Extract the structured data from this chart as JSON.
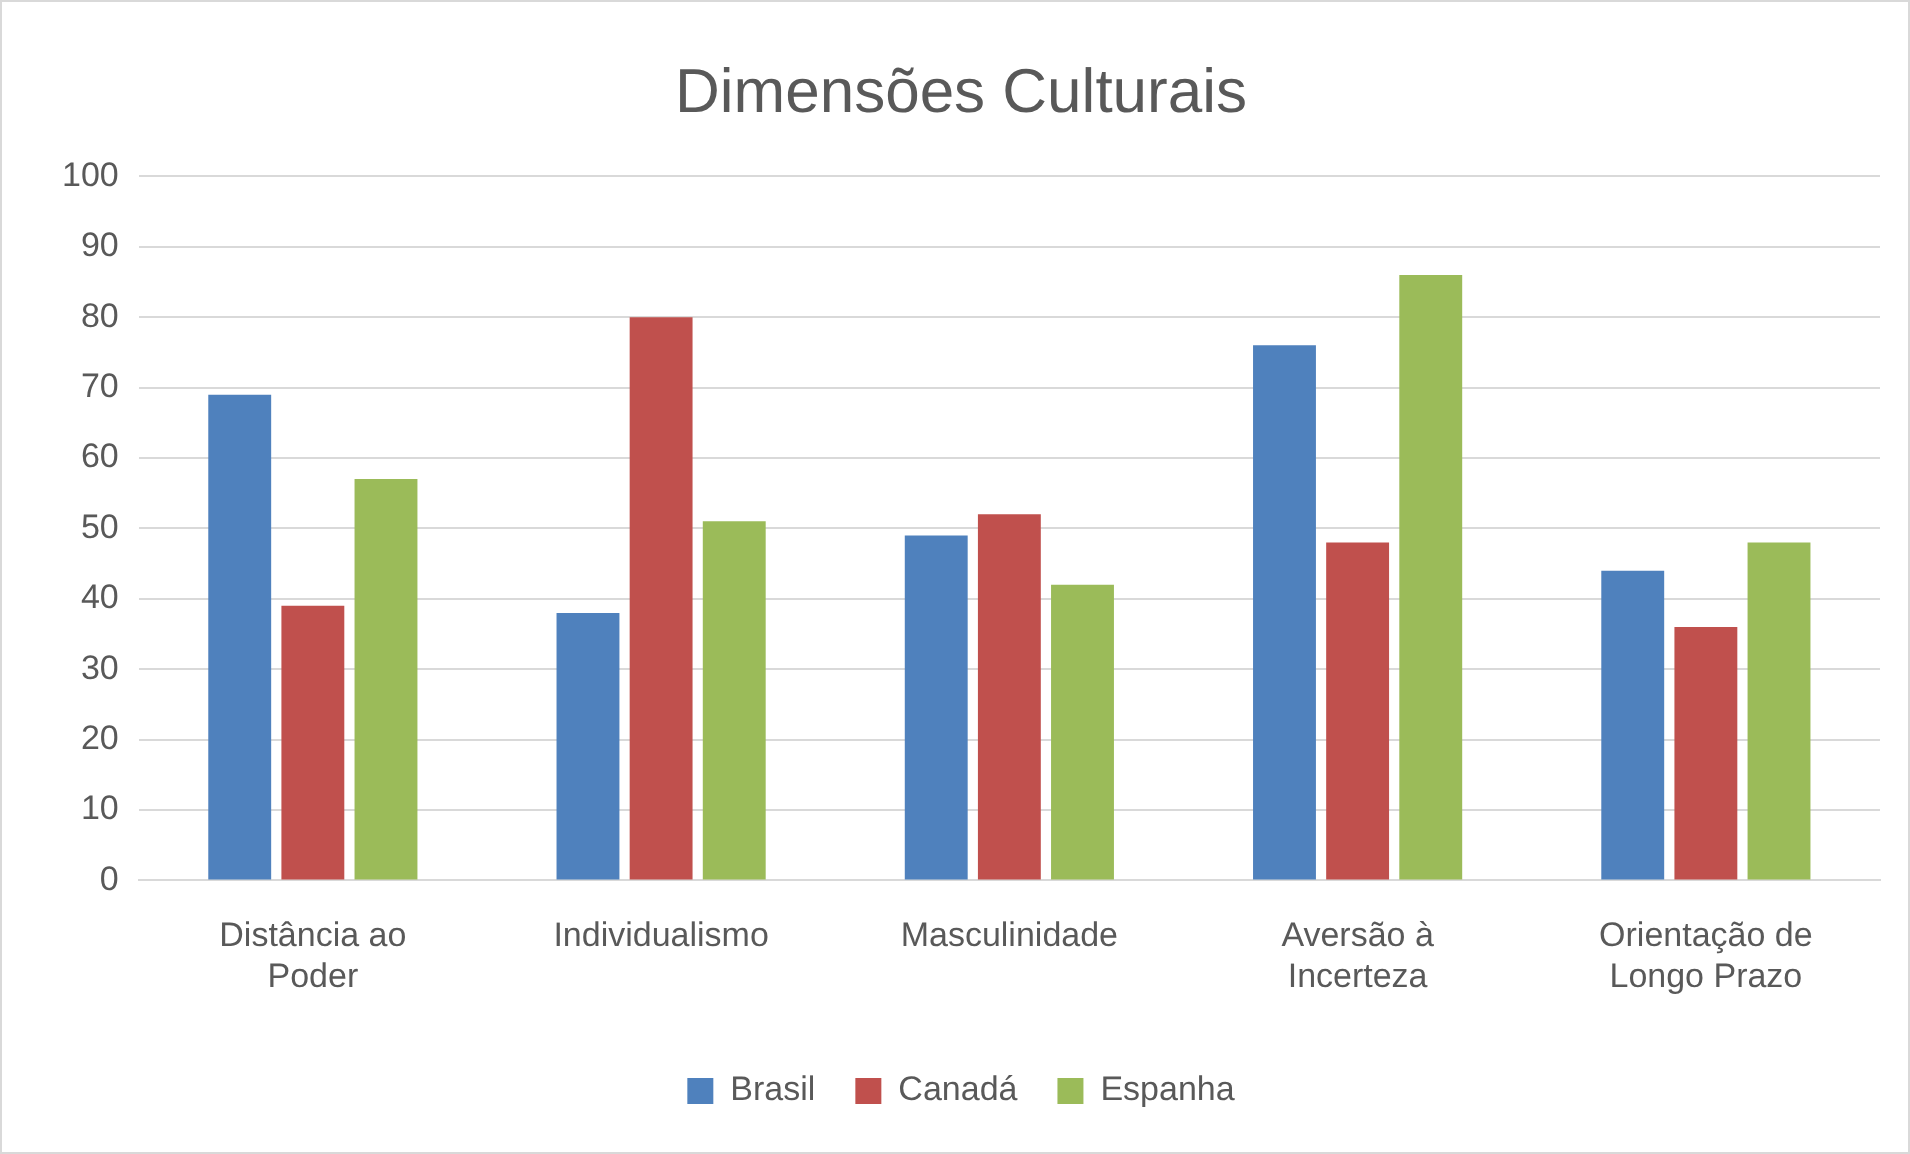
{
  "chart_data": {
    "type": "bar",
    "title": "Dimensões Culturais",
    "categories": [
      "Distância ao Poder",
      "Individualismo",
      "Masculinidade",
      "Aversão à Incerteza",
      "Orientação de Longo Prazo"
    ],
    "series": [
      {
        "name": "Brasil",
        "color": "#4f81bd",
        "values": [
          69,
          38,
          49,
          76,
          44
        ]
      },
      {
        "name": "Canadá",
        "color": "#c0504d",
        "values": [
          39,
          80,
          52,
          48,
          36
        ]
      },
      {
        "name": "Espanha",
        "color": "#9bbb59",
        "values": [
          57,
          51,
          42,
          86,
          48
        ]
      }
    ],
    "ylim": [
      0,
      100
    ],
    "yticks": [
      0,
      10,
      20,
      30,
      40,
      50,
      60,
      70,
      80,
      90,
      100
    ],
    "grid": "y",
    "legend": "bottom"
  }
}
